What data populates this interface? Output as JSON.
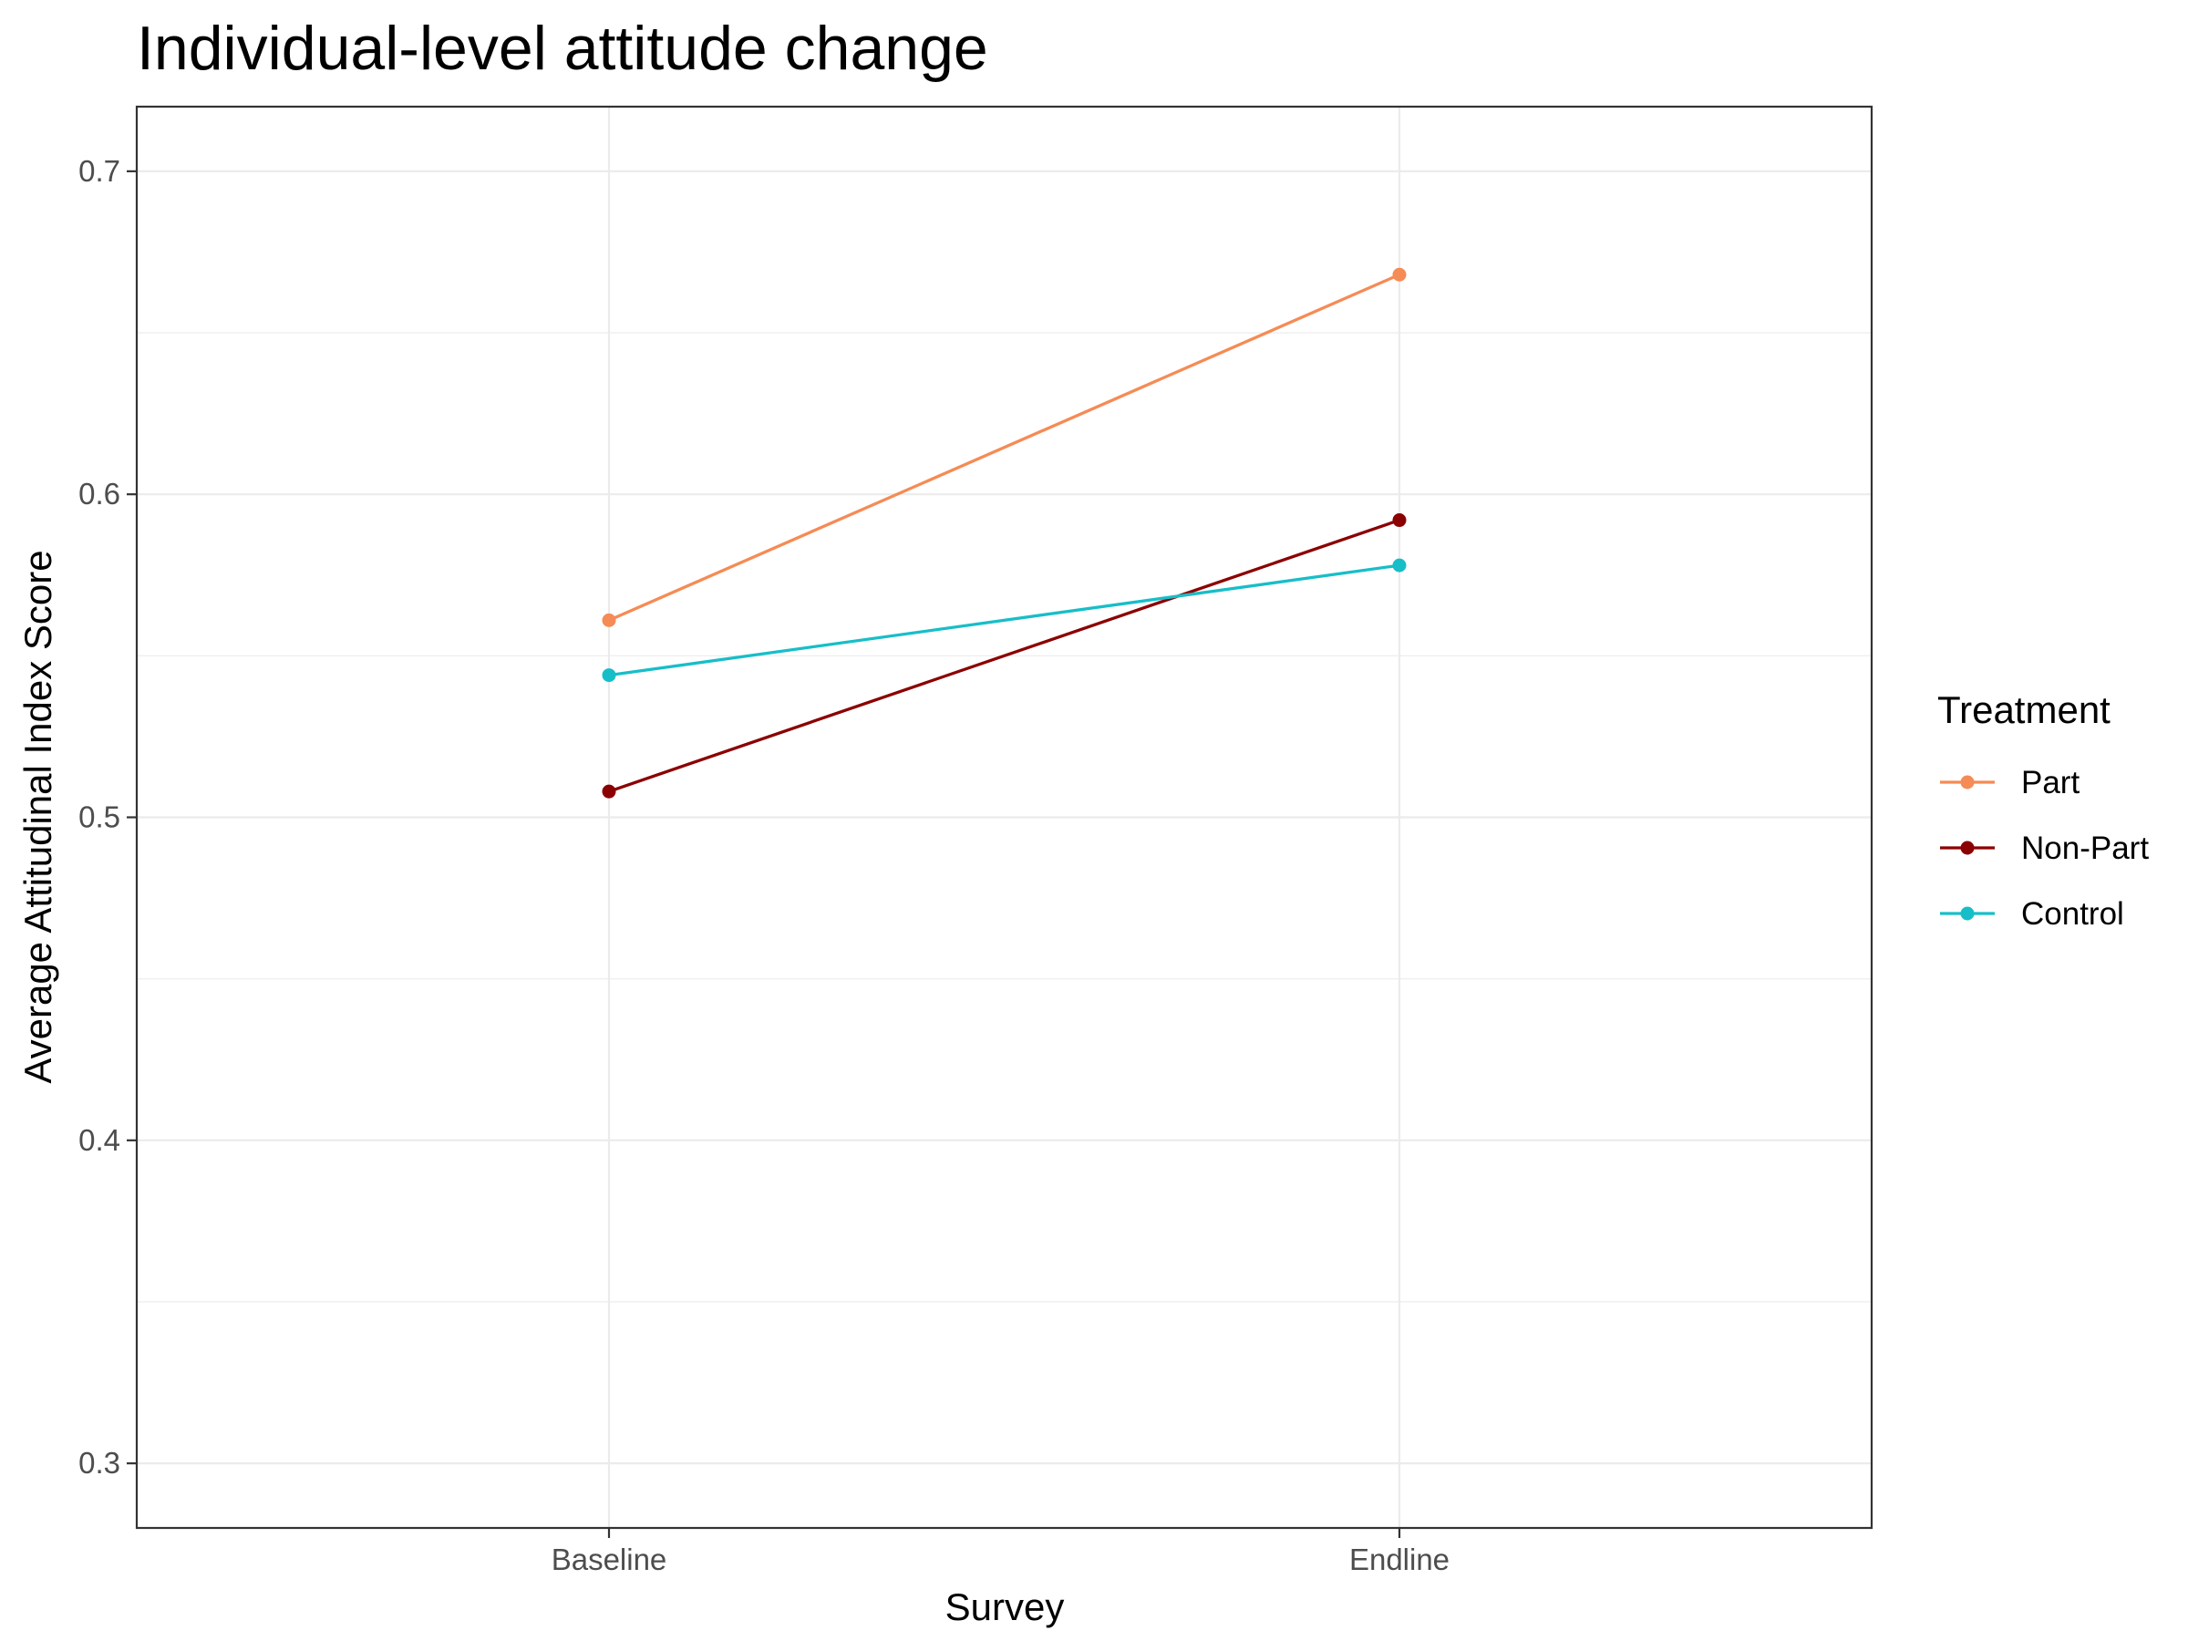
{
  "chart_data": {
    "type": "line",
    "title": "Individual-level attitude change",
    "xlabel": "Survey",
    "ylabel": "Average Attitudinal Index Score",
    "categories": [
      "Baseline",
      "Endline"
    ],
    "ylim": [
      0.28,
      0.72
    ],
    "yticks": [
      0.3,
      0.4,
      0.5,
      0.6,
      0.7
    ],
    "ytick_labels": [
      "0.3",
      "0.4",
      "0.5",
      "0.6",
      "0.7"
    ],
    "grid": true,
    "legend_title": "Treatment",
    "legend_position": "right",
    "series": [
      {
        "name": "Part",
        "color": "#F58B55",
        "values": [
          0.561,
          0.668
        ]
      },
      {
        "name": "Non-Part",
        "color": "#8B0000",
        "values": [
          0.508,
          0.592
        ]
      },
      {
        "name": "Control",
        "color": "#17BEC8",
        "values": [
          0.544,
          0.578
        ]
      }
    ]
  }
}
